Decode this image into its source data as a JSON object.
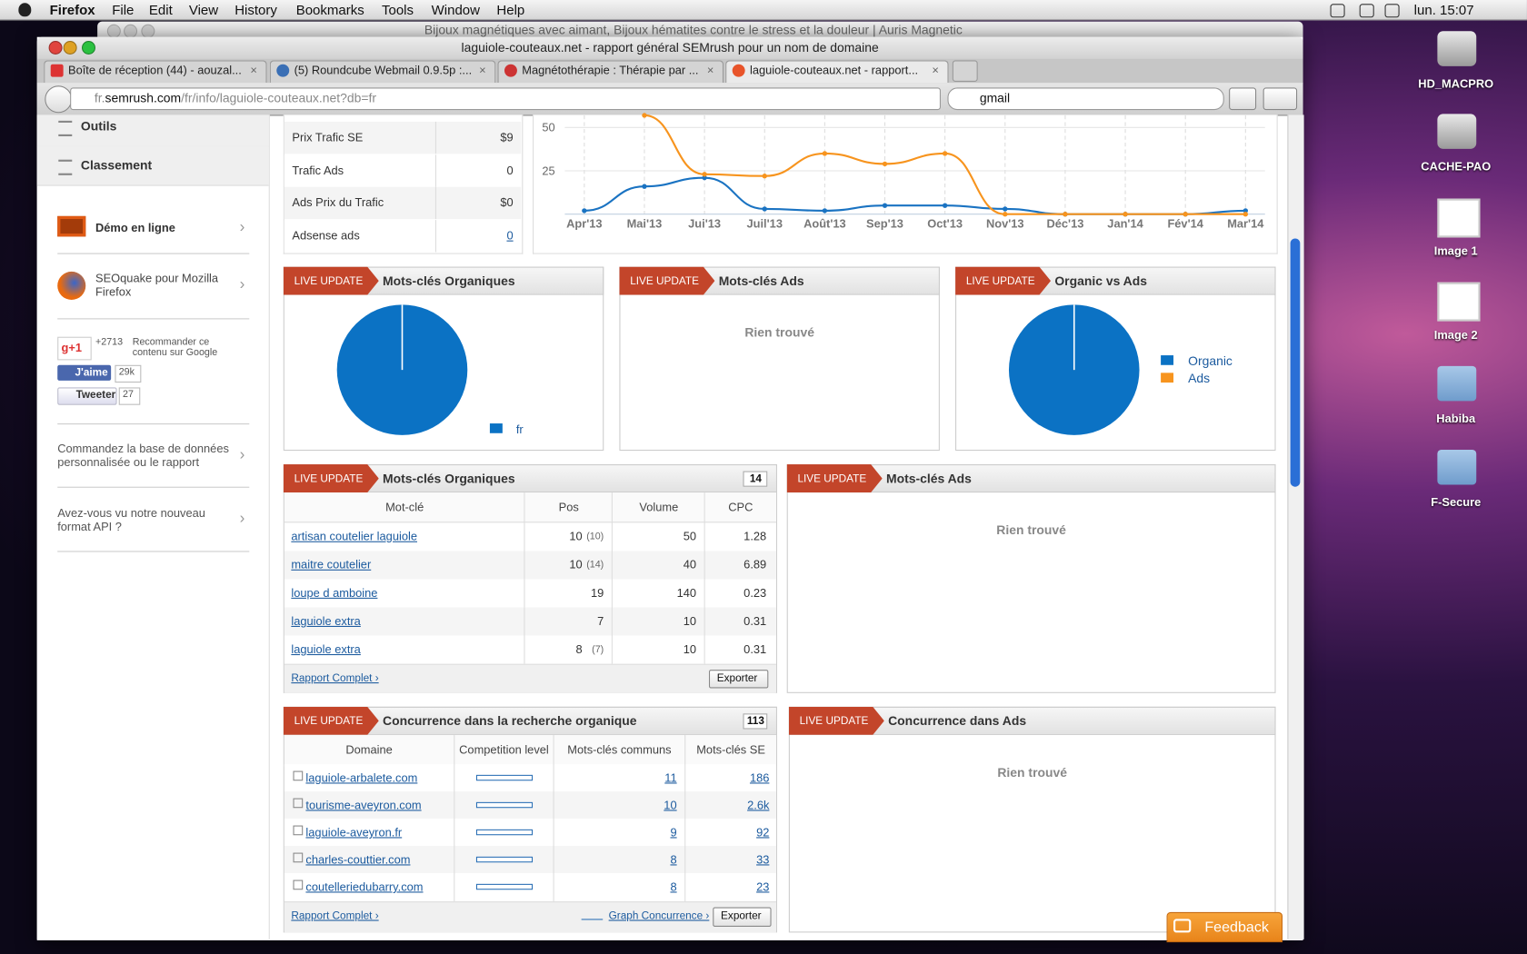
{
  "menubar": {
    "app": "Firefox",
    "items": [
      "File",
      "Edit",
      "View",
      "History",
      "Bookmarks",
      "Tools",
      "Window",
      "Help"
    ],
    "clock": "lun. 15:07"
  },
  "desktop_icons": [
    "HD_MACPRO",
    "CACHE-PAO",
    "Image 1",
    "Image 2",
    "Habiba",
    "F-Secure"
  ],
  "window": {
    "behind_title": "Bijoux magnétiques avec aimant, Bijoux hématites contre le stress et la douleur | Auris Magnetic",
    "title": "laguiole-couteaux.net - rapport général SEMrush pour un nom de domaine"
  },
  "tabs": [
    "Boîte de réception (44) - aouzal...",
    "(5) Roundcube Webmail 0.9.5p :...",
    "Magnétothérapie : Thérapie par ...",
    "laguiole-couteaux.net - rapport..."
  ],
  "url": {
    "prefix": "fr.",
    "domain": "semrush.com",
    "path": "/fr/info/laguiole-couteaux.net?db=fr"
  },
  "search": "gmail",
  "sidebar": {
    "menu": [
      "Outils",
      "Classement"
    ],
    "links": [
      "Démo en ligne",
      "SEOquake pour Mozilla Firefox"
    ],
    "social": {
      "gplus": "g+1",
      "gplus_count": "+2713",
      "gplus_text": "Recommander ce contenu sur Google",
      "like": "J'aime",
      "like_count": "29k",
      "tweet": "Tweeter",
      "tweet_count": 27
    },
    "promos": [
      "Commandez la base de données personnalisée ou le rapport",
      "Avez-vous vu notre nouveau format API ?"
    ]
  },
  "traffic_table": {
    "rows": [
      [
        "Prix Trafic SE",
        "$9"
      ],
      [
        "Trafic Ads",
        0
      ],
      [
        "Ads Prix du Trafic",
        "$0"
      ],
      [
        "Adsense ads",
        0
      ]
    ]
  },
  "trend_chart": {
    "type": "line",
    "categories": [
      "Apr'13",
      "Mai'13",
      "Jui'13",
      "Juil'13",
      "Août'13",
      "Sep'13",
      "Oct'13",
      "Nov'13",
      "Déc'13",
      "Jan'14",
      "Fév'14",
      "Mar'14"
    ],
    "ylim": [
      0,
      57
    ],
    "yticks": [
      25,
      50
    ],
    "series": [
      {
        "color": "#1a73c2",
        "values": [
          2,
          16,
          21,
          3,
          2,
          5,
          5,
          3,
          0,
          0,
          0,
          2
        ]
      },
      {
        "color": "#f7941e",
        "values": [
          null,
          57,
          23,
          22,
          35,
          29,
          35,
          0,
          0,
          0,
          0,
          0
        ]
      }
    ]
  },
  "live_update": "LIVE UPDATE",
  "panels": {
    "organic_pie": {
      "title": "Mots-clés Organiques",
      "legend": [
        "fr"
      ],
      "values": [
        100
      ],
      "colors": [
        "#0b72c4"
      ]
    },
    "ads_pie": {
      "title": "Mots-clés Ads",
      "empty": "Rien trouvé"
    },
    "organic_vs_ads": {
      "title": "Organic vs Ads",
      "legend": [
        "Organic",
        "Ads"
      ],
      "values": [
        100,
        0
      ],
      "colors": [
        "#0b72c4",
        "#f7941e"
      ]
    },
    "organic_keywords": {
      "title": "Mots-clés Organiques",
      "count": 14,
      "header": [
        "Mot-clé",
        "Pos",
        "Volume",
        "CPC"
      ],
      "rows": [
        {
          "keyword": "artisan coutelier laguiole",
          "pos": 10,
          "prev": "(10)",
          "volume": 50,
          "cpc": 1.28
        },
        {
          "keyword": "maitre coutelier",
          "pos": 10,
          "prev": "(14)",
          "volume": 40,
          "cpc": 6.89
        },
        {
          "keyword": "loupe d amboine",
          "pos": 19,
          "volume": 140,
          "cpc": 0.23
        },
        {
          "keyword": "laguiole extra",
          "pos": 7,
          "volume": 10,
          "cpc": 0.31
        },
        {
          "keyword": "laguiole extra",
          "pos": 8,
          "prev": "(7)",
          "volume": 10,
          "cpc": 0.31
        }
      ],
      "full_report": "Rapport Complet ›",
      "export": "Exporter"
    },
    "ads_keywords": {
      "title": "Mots-clés Ads",
      "empty": "Rien trouvé"
    },
    "competition": {
      "title": "Concurrence dans la recherche organique",
      "count": 113,
      "header": [
        "Domaine",
        "Competition level",
        "Mots-clés communs",
        "Mots-clés SE"
      ],
      "rows": [
        {
          "domain": "laguiole-arbalete.com",
          "common": 11,
          "se": 186
        },
        {
          "domain": "tourisme-aveyron.com",
          "common": 10,
          "se": "2.6k"
        },
        {
          "domain": "laguiole-aveyron.fr",
          "common": 9,
          "se": 92
        },
        {
          "domain": "charles-couttier.com",
          "common": 8,
          "se": 33
        },
        {
          "domain": "coutelleriedubarry.com",
          "common": 8,
          "se": 23
        }
      ],
      "full_report": "Rapport Complet ›",
      "graph": "Graph Concurrence ›",
      "export": "Exporter"
    },
    "ads_competition": {
      "title": "Concurrence dans Ads",
      "empty": "Rien trouvé"
    }
  },
  "feedback": "Feedback"
}
